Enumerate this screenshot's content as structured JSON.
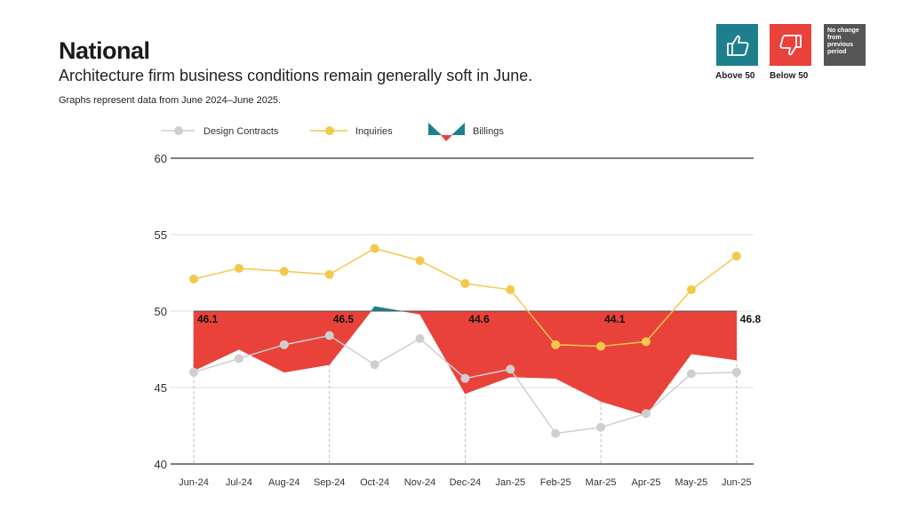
{
  "header": {
    "title": "National",
    "subtitle": "Architecture firm business conditions remain generally soft in June.",
    "note": "Graphs represent data from June 2024–June 2025."
  },
  "key": {
    "above_label": "Above 50",
    "below_label": "Below 50",
    "no_change_label": "No change\nfrom\nprevious\nperiod",
    "above_icon": "thumbs-up-icon",
    "below_icon": "thumbs-down-icon"
  },
  "colors": {
    "above": "#1e7f8c",
    "below": "#e8423a",
    "design_contracts": "#cfcfcf",
    "inquiries": "#f2c94c",
    "no_change": "#555555"
  },
  "chart_data": {
    "type": "area",
    "categories": [
      "Jun-24",
      "Jul-24",
      "Aug-24",
      "Sep-24",
      "Oct-24",
      "Nov-24",
      "Dec-24",
      "Jan-25",
      "Feb-25",
      "Mar-25",
      "Apr-25",
      "May-25",
      "Jun-25"
    ],
    "ylim": [
      40,
      60
    ],
    "yticks": [
      40,
      45,
      50,
      55,
      60
    ],
    "baseline": 50,
    "grid": true,
    "legend_position": "top",
    "series": [
      {
        "name": "Design Contracts",
        "type": "line",
        "values": [
          46.0,
          46.9,
          47.8,
          48.4,
          46.5,
          48.2,
          45.6,
          46.2,
          42.0,
          42.4,
          43.3,
          45.9,
          46.0
        ]
      },
      {
        "name": "Inquiries",
        "type": "line",
        "values": [
          52.1,
          52.8,
          52.6,
          52.4,
          54.1,
          53.3,
          51.8,
          51.4,
          47.8,
          47.7,
          48.0,
          51.4,
          53.6
        ]
      },
      {
        "name": "Billings",
        "type": "area",
        "values": [
          46.1,
          47.5,
          46.0,
          46.5,
          50.3,
          49.8,
          44.6,
          45.7,
          45.6,
          44.1,
          43.2,
          47.2,
          46.8
        ]
      }
    ],
    "data_labels": [
      {
        "category": "Jun-24",
        "text": "46.1"
      },
      {
        "category": "Sep-24",
        "text": "46.5"
      },
      {
        "category": "Dec-24",
        "text": "44.6"
      },
      {
        "category": "Mar-25",
        "text": "44.1"
      },
      {
        "category": "Jun-25",
        "text": "46.8"
      }
    ]
  }
}
